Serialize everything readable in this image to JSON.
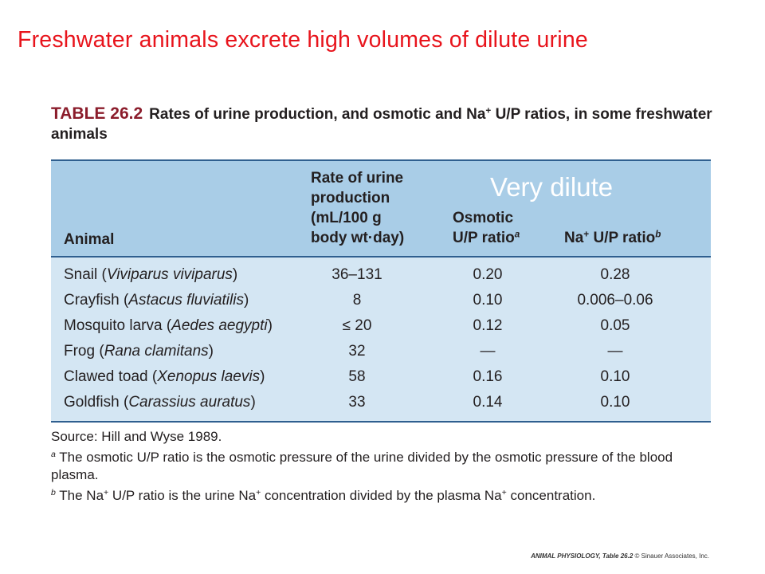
{
  "slide": {
    "title": "Freshwater animals excrete high volumes of dilute urine"
  },
  "table": {
    "number": "TABLE 26.2",
    "caption_before": "Rates of urine production, and osmotic and Na",
    "caption_sup": "+",
    "caption_after": " U/P ratios, in some freshwater animals",
    "overlay_note": "Very dilute",
    "headers": {
      "animal": "Animal",
      "rate_lines": [
        "Rate of urine",
        "production",
        "(mL/100 g",
        "body wt·day)"
      ],
      "osmotic_line1": "Osmotic",
      "osmotic_line2": "U/P ratio",
      "osmotic_sup": "a",
      "na_prefix": "Na",
      "na_sup": "+",
      "na_text": " U/P ratio",
      "na_note": "b"
    },
    "rows": [
      {
        "common": "Snail",
        "species": "Viviparus viviparus",
        "rate": "36–131",
        "osmotic": "0.20",
        "na": "0.28"
      },
      {
        "common": "Crayfish",
        "species": "Astacus fluviatilis",
        "rate": "8",
        "osmotic": "0.10",
        "na": "0.006–0.06"
      },
      {
        "common": "Mosquito larva",
        "species": "Aedes aegypti",
        "rate": "≤ 20",
        "osmotic": "0.12",
        "na": "0.05"
      },
      {
        "common": "Frog",
        "species": "Rana clamitans",
        "rate": "32",
        "osmotic": "—",
        "na": "—"
      },
      {
        "common": "Clawed toad",
        "species": "Xenopus laevis",
        "rate": "58",
        "osmotic": "0.16",
        "na": "0.10"
      },
      {
        "common": "Goldfish",
        "species": "Carassius auratus",
        "rate": "33",
        "osmotic": "0.14",
        "na": "0.10"
      }
    ],
    "source": "Source: Hill and Wyse 1989.",
    "footnote_a_mark": "a",
    "footnote_a_text": " The osmotic U/P ratio is the osmotic pressure of the urine divided by the osmotic pressure of the blood plasma.",
    "footnote_b_mark": "b",
    "footnote_b_part1": " The Na",
    "footnote_b_sup1": "+",
    "footnote_b_part2": " U/P ratio is the urine Na",
    "footnote_b_sup2": "+",
    "footnote_b_part3": " concentration divided by the plasma Na",
    "footnote_b_sup3": "+",
    "footnote_b_part4": " concentration."
  },
  "credit": {
    "book": "ANIMAL PHYSIOLOGY, Table 26.2",
    "publisher": "© Sinauer Associates, Inc."
  }
}
